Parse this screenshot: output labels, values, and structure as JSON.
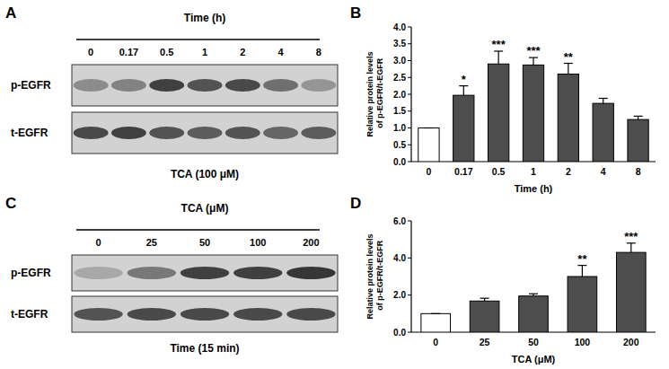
{
  "chart_data": [
    {
      "type": "bar",
      "annotations": [
        "B"
      ],
      "x_label": "Time (h)",
      "y_label": "Relative protein levels of p-EGFR/t-EGFR",
      "categories": [
        "0",
        "0.17",
        "0.5",
        "1",
        "2",
        "4",
        "8"
      ],
      "values": [
        1.0,
        1.97,
        2.9,
        2.87,
        2.6,
        1.73,
        1.25
      ],
      "errors": [
        0,
        0.28,
        0.38,
        0.22,
        0.32,
        0.15,
        0.1
      ],
      "stars": [
        null,
        "*",
        "***",
        "***",
        "**",
        null,
        null
      ],
      "colors": [
        "#ffffff",
        "#4d4d4d",
        "#4d4d4d",
        "#4d4d4d",
        "#4d4d4d",
        "#4d4d4d",
        "#4d4d4d"
      ],
      "ylim": [
        0,
        4
      ],
      "yticks": [
        {
          "value": 0,
          "label": "0.0"
        },
        {
          "value": 0.5,
          "label": "0.5"
        },
        {
          "value": 1,
          "label": "1.0"
        },
        {
          "value": 1.5,
          "label": "1.5"
        },
        {
          "value": 2,
          "label": "2.0"
        },
        {
          "value": 2.5,
          "label": "2.5"
        },
        {
          "value": 3,
          "label": "3.0"
        },
        {
          "value": 3.5,
          "label": "3.5"
        },
        {
          "value": 4,
          "label": "4.0"
        }
      ]
    },
    {
      "type": "bar",
      "annotations": [
        "D"
      ],
      "x_label": "TCA (μM)",
      "y_label": "Relative protein levels of p-EGFR/t-EGFR",
      "categories": [
        "0",
        "25",
        "50",
        "100",
        "200"
      ],
      "values": [
        1.0,
        1.68,
        1.95,
        3.0,
        4.3
      ],
      "errors": [
        0,
        0.15,
        0.12,
        0.6,
        0.5
      ],
      "stars": [
        null,
        null,
        null,
        "**",
        "***"
      ],
      "colors": [
        "#ffffff",
        "#4d4d4d",
        "#4d4d4d",
        "#4d4d4d",
        "#4d4d4d"
      ],
      "ylim": [
        0,
        6
      ],
      "yticks": [
        {
          "value": 0,
          "label": "0.0"
        },
        {
          "value": 2,
          "label": "2.0"
        },
        {
          "value": 4,
          "label": "4.0"
        },
        {
          "value": 6,
          "label": "6.0"
        }
      ]
    }
  ],
  "blots": [
    {
      "panel": "A",
      "header": "Time (h)",
      "lanes": [
        "0",
        "0.17",
        "0.5",
        "1",
        "2",
        "4",
        "8"
      ],
      "rows": [
        "p-EGFR",
        "t-EGFR"
      ],
      "intensities": [
        [
          0.45,
          0.5,
          0.85,
          0.75,
          0.8,
          0.6,
          0.4
        ],
        [
          0.8,
          0.85,
          0.75,
          0.7,
          0.75,
          0.65,
          0.7
        ]
      ],
      "caption": "TCA (100 μM)"
    },
    {
      "panel": "C",
      "header": "TCA (μM)",
      "lanes": [
        "0",
        "25",
        "50",
        "100",
        "200"
      ],
      "rows": [
        "p-EGFR",
        "t-EGFR"
      ],
      "intensities": [
        [
          0.3,
          0.55,
          0.85,
          0.85,
          0.9
        ],
        [
          0.75,
          0.8,
          0.8,
          0.8,
          0.8
        ]
      ],
      "caption": "Time (15 min)"
    }
  ]
}
